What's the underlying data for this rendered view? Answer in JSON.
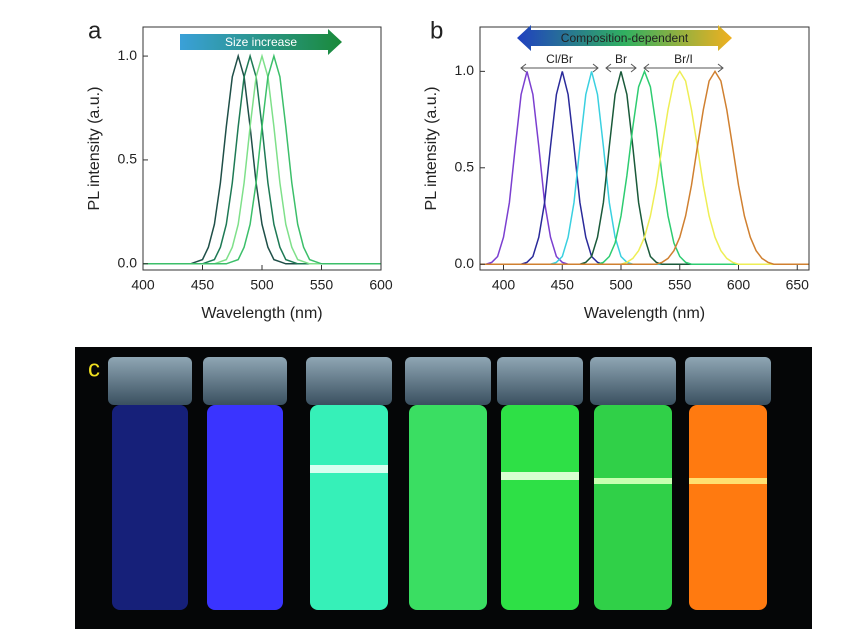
{
  "chart_data": [
    {
      "type": "line",
      "panel_label": "a",
      "x_label": "Wavelength (nm)",
      "y_label": "PL intensity (a.u.)",
      "annotations": [
        {
          "text": "Size increase"
        }
      ],
      "x": [
        400,
        405,
        410,
        415,
        420,
        425,
        430,
        435,
        440,
        445,
        450,
        455,
        460,
        465,
        470,
        475,
        480,
        485,
        490,
        495,
        500,
        505,
        510,
        515,
        520,
        525,
        530,
        535,
        540,
        545,
        550,
        555,
        560,
        565,
        570,
        575,
        580,
        585,
        590,
        595,
        600
      ],
      "series": [
        {
          "color": "#1f4f48",
          "values": [
            0,
            0,
            0,
            0,
            0,
            0,
            0,
            0,
            0,
            0.01,
            0.02,
            0.08,
            0.19,
            0.39,
            0.66,
            0.9,
            1,
            0.9,
            0.66,
            0.39,
            0.19,
            0.08,
            0.02,
            0.01,
            0,
            0,
            0,
            0,
            0,
            0,
            0,
            0,
            0,
            0,
            0,
            0,
            0,
            0,
            0,
            0,
            0
          ]
        },
        {
          "color": "#1e7a55",
          "values": [
            0,
            0,
            0,
            0,
            0,
            0,
            0,
            0,
            0,
            0,
            0,
            0.01,
            0.02,
            0.08,
            0.19,
            0.39,
            0.66,
            0.9,
            1,
            0.9,
            0.66,
            0.39,
            0.19,
            0.08,
            0.02,
            0.01,
            0,
            0,
            0,
            0,
            0,
            0,
            0,
            0,
            0,
            0,
            0,
            0,
            0,
            0,
            0
          ]
        },
        {
          "color": "#7fe08a",
          "values": [
            0,
            0,
            0,
            0,
            0,
            0,
            0,
            0,
            0,
            0,
            0,
            0,
            0,
            0.01,
            0.02,
            0.08,
            0.19,
            0.39,
            0.66,
            0.9,
            1,
            0.9,
            0.66,
            0.39,
            0.19,
            0.08,
            0.02,
            0.01,
            0,
            0,
            0,
            0,
            0,
            0,
            0,
            0,
            0,
            0,
            0,
            0,
            0
          ]
        },
        {
          "color": "#3cbf6a",
          "values": [
            0,
            0,
            0,
            0,
            0,
            0,
            0,
            0,
            0,
            0,
            0,
            0,
            0,
            0,
            0,
            0.01,
            0.02,
            0.08,
            0.19,
            0.39,
            0.66,
            0.9,
            1,
            0.9,
            0.66,
            0.39,
            0.19,
            0.08,
            0.02,
            0.01,
            0,
            0,
            0,
            0,
            0,
            0,
            0,
            0,
            0,
            0,
            0
          ]
        }
      ],
      "xlim": [
        400,
        600
      ],
      "xticks": [
        400,
        450,
        500,
        550,
        600
      ],
      "ylim": [
        -0.03,
        1.14
      ],
      "yticks": [
        {
          "value": 0,
          "label": "0.0"
        },
        {
          "value": 0.5,
          "label": "0.5"
        },
        {
          "value": 1,
          "label": "1.0"
        }
      ]
    },
    {
      "type": "line",
      "panel_label": "b",
      "x_label": "Wavelength (nm)",
      "y_label": "PL intensity (a.u.)",
      "annotations": [
        {
          "text": "Composition-dependent"
        },
        {
          "text": "Cl/Br"
        },
        {
          "text": "Br"
        },
        {
          "text": "Br/I"
        }
      ],
      "x": [
        380,
        385,
        390,
        395,
        400,
        405,
        410,
        415,
        420,
        425,
        430,
        435,
        440,
        445,
        450,
        455,
        460,
        465,
        470,
        475,
        480,
        485,
        490,
        495,
        500,
        505,
        510,
        515,
        520,
        525,
        530,
        535,
        540,
        545,
        550,
        555,
        560,
        565,
        570,
        575,
        580,
        585,
        590,
        595,
        600,
        605,
        610,
        615,
        620,
        625,
        630,
        635,
        640,
        645,
        650,
        655,
        660
      ],
      "series": [
        {
          "color": "#7b3fd0",
          "values": [
            0,
            0,
            0.01,
            0.04,
            0.14,
            0.32,
            0.61,
            0.88,
            1,
            0.88,
            0.61,
            0.32,
            0.14,
            0.04,
            0.01,
            0,
            0,
            0,
            0,
            0,
            0,
            0,
            0,
            0,
            0,
            0,
            0,
            0,
            0,
            0,
            0,
            0,
            0,
            0,
            0,
            0,
            0,
            0,
            0,
            0,
            0,
            0,
            0,
            0,
            0,
            0,
            0,
            0,
            0,
            0,
            0,
            0,
            0,
            0,
            0,
            0,
            0
          ]
        },
        {
          "color": "#2a2a9a",
          "values": [
            0,
            0,
            0,
            0,
            0,
            0,
            0,
            0,
            0.01,
            0.04,
            0.14,
            0.32,
            0.61,
            0.88,
            1,
            0.88,
            0.61,
            0.32,
            0.14,
            0.04,
            0.01,
            0,
            0,
            0,
            0,
            0,
            0,
            0,
            0,
            0,
            0,
            0,
            0,
            0,
            0,
            0,
            0,
            0,
            0,
            0,
            0,
            0,
            0,
            0,
            0,
            0,
            0,
            0,
            0,
            0,
            0,
            0,
            0,
            0,
            0,
            0,
            0
          ]
        },
        {
          "color": "#3ad0e0",
          "values": [
            0,
            0,
            0,
            0,
            0,
            0,
            0,
            0,
            0,
            0,
            0,
            0,
            0,
            0.01,
            0.04,
            0.14,
            0.32,
            0.61,
            0.88,
            1,
            0.88,
            0.61,
            0.32,
            0.14,
            0.04,
            0.01,
            0,
            0,
            0,
            0,
            0,
            0,
            0,
            0,
            0,
            0,
            0,
            0,
            0,
            0,
            0,
            0,
            0,
            0,
            0,
            0,
            0,
            0,
            0,
            0,
            0,
            0,
            0,
            0,
            0,
            0,
            0
          ]
        },
        {
          "color": "#1a5a3a",
          "values": [
            0,
            0,
            0,
            0,
            0,
            0,
            0,
            0,
            0,
            0,
            0,
            0,
            0,
            0,
            0,
            0,
            0,
            0,
            0.01,
            0.04,
            0.14,
            0.32,
            0.61,
            0.88,
            1,
            0.88,
            0.61,
            0.32,
            0.14,
            0.04,
            0.01,
            0,
            0,
            0,
            0,
            0,
            0,
            0,
            0,
            0,
            0,
            0,
            0,
            0,
            0,
            0,
            0,
            0,
            0,
            0,
            0,
            0,
            0,
            0,
            0,
            0,
            0
          ]
        },
        {
          "color": "#2ecc71",
          "values": [
            0,
            0,
            0,
            0,
            0,
            0,
            0,
            0,
            0,
            0,
            0,
            0,
            0,
            0,
            0,
            0,
            0,
            0,
            0,
            0,
            0,
            0.01,
            0.04,
            0.11,
            0.25,
            0.46,
            0.71,
            0.92,
            1,
            0.92,
            0.71,
            0.46,
            0.25,
            0.11,
            0.04,
            0.01,
            0,
            0,
            0,
            0,
            0,
            0,
            0,
            0,
            0,
            0,
            0,
            0,
            0,
            0,
            0,
            0,
            0,
            0,
            0,
            0,
            0
          ]
        },
        {
          "color": "#eeee55",
          "values": [
            0,
            0,
            0,
            0,
            0,
            0,
            0,
            0,
            0,
            0,
            0,
            0,
            0,
            0,
            0,
            0,
            0,
            0,
            0,
            0,
            0,
            0,
            0,
            0,
            0,
            0.01,
            0.03,
            0.07,
            0.14,
            0.25,
            0.41,
            0.61,
            0.8,
            0.95,
            1,
            0.95,
            0.8,
            0.61,
            0.41,
            0.25,
            0.14,
            0.07,
            0.03,
            0.01,
            0,
            0,
            0,
            0,
            0,
            0,
            0,
            0,
            0,
            0,
            0,
            0,
            0
          ]
        },
        {
          "color": "#d08030",
          "values": [
            0,
            0,
            0,
            0,
            0,
            0,
            0,
            0,
            0,
            0,
            0,
            0,
            0,
            0,
            0,
            0,
            0,
            0,
            0,
            0,
            0,
            0,
            0,
            0,
            0,
            0,
            0,
            0,
            0,
            0,
            0,
            0.01,
            0.03,
            0.07,
            0.14,
            0.25,
            0.41,
            0.61,
            0.8,
            0.95,
            1,
            0.95,
            0.8,
            0.61,
            0.41,
            0.25,
            0.14,
            0.07,
            0.03,
            0.01,
            0,
            0,
            0,
            0,
            0,
            0,
            0
          ]
        }
      ],
      "xlim": [
        380,
        660
      ],
      "xticks": [
        400,
        450,
        500,
        550,
        600,
        650
      ],
      "ylim": [
        -0.03,
        1.23
      ],
      "yticks": [
        {
          "value": 0,
          "label": "0.0"
        },
        {
          "value": 0.5,
          "label": "0.5"
        },
        {
          "value": 1,
          "label": "1.0"
        }
      ]
    }
  ],
  "photo": {
    "panel_label": "c"
  }
}
